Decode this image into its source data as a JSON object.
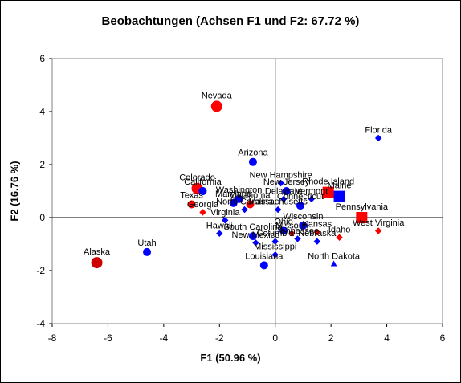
{
  "chart_data": {
    "type": "scatter",
    "title": "Beobachtungen (Achsen F1 und F2: 67.72 %)",
    "xlabel": "F1 (50.96 %)",
    "ylabel": "F2 (16.76 %)",
    "xlim": [
      -8,
      6
    ],
    "ylim": [
      -4,
      6
    ],
    "x_ticks": [
      "-8",
      "-6",
      "-4",
      "-2",
      "0",
      "2",
      "4",
      "6"
    ],
    "y_ticks": [
      "-4",
      "-2",
      "0",
      "2",
      "4",
      "6"
    ],
    "grid": false,
    "legend": "none",
    "colors": {
      "red": "#ff0000",
      "blue": "#0000ff",
      "darkred": "#cc0000"
    },
    "points": [
      {
        "label": "Nevada",
        "x": -2.1,
        "y": 4.2,
        "color": "red",
        "shape": "circle",
        "size": "large"
      },
      {
        "label": "Florida",
        "x": 3.7,
        "y": 3.0,
        "color": "blue",
        "shape": "diamond",
        "size": "small"
      },
      {
        "label": "Arizona",
        "x": -0.8,
        "y": 2.1,
        "color": "blue",
        "shape": "circle",
        "size": "medium"
      },
      {
        "label": "New Hampshire",
        "x": 0.2,
        "y": 1.3,
        "color": "blue",
        "shape": "diamond",
        "size": "small"
      },
      {
        "label": "Colorado",
        "x": -2.8,
        "y": 1.1,
        "color": "red",
        "shape": "circle",
        "size": "large"
      },
      {
        "label": "California",
        "x": -2.6,
        "y": 1.0,
        "color": "blue",
        "shape": "circle",
        "size": "medium"
      },
      {
        "label": "Rhode Island",
        "x": 1.9,
        "y": 0.95,
        "color": "red",
        "shape": "square",
        "size": "large"
      },
      {
        "label": "New Jersey",
        "x": 0.4,
        "y": 1.0,
        "color": "blue",
        "shape": "circle",
        "size": "medium"
      },
      {
        "label": "Maine",
        "x": 2.3,
        "y": 0.8,
        "color": "blue",
        "shape": "square",
        "size": "large"
      },
      {
        "label": "Washington",
        "x": -1.3,
        "y": 0.7,
        "color": "blue",
        "shape": "circle",
        "size": "medium"
      },
      {
        "label": "Delaware",
        "x": 0.3,
        "y": 0.7,
        "color": "blue",
        "shape": "diamond",
        "size": "small"
      },
      {
        "label": "Vermont",
        "x": 1.3,
        "y": 0.7,
        "color": "blue",
        "shape": "diamond",
        "size": "small"
      },
      {
        "label": "Texas",
        "x": -3.0,
        "y": 0.5,
        "color": "red",
        "shape": "circle",
        "size": "medium"
      },
      {
        "label": "Maryland",
        "x": -1.5,
        "y": 0.55,
        "color": "blue",
        "shape": "circle",
        "size": "medium"
      },
      {
        "label": "Oklahoma",
        "x": -0.9,
        "y": 0.5,
        "color": "red",
        "shape": "circle",
        "size": "medium"
      },
      {
        "label": "Connecticut",
        "x": 0.9,
        "y": 0.45,
        "color": "blue",
        "shape": "circle",
        "size": "medium"
      },
      {
        "label": "Georgia",
        "x": -2.6,
        "y": 0.2,
        "color": "red",
        "shape": "diamond",
        "size": "small"
      },
      {
        "label": "North Carolina",
        "x": -1.1,
        "y": 0.3,
        "color": "blue",
        "shape": "diamond",
        "size": "small"
      },
      {
        "label": "Massachusetts",
        "x": 0.1,
        "y": 0.3,
        "color": "blue",
        "shape": "diamond",
        "size": "small"
      },
      {
        "label": "Pennsylvania",
        "x": 3.1,
        "y": 0.0,
        "color": "red",
        "shape": "square",
        "size": "large"
      },
      {
        "label": "Virginia",
        "x": -1.8,
        "y": -0.1,
        "color": "blue",
        "shape": "diamond",
        "size": "small"
      },
      {
        "label": "Wisconsin",
        "x": 1.0,
        "y": -0.3,
        "color": "blue",
        "shape": "circle",
        "size": "medium"
      },
      {
        "label": "Ohio",
        "x": 0.3,
        "y": -0.5,
        "color": "blue",
        "shape": "circle",
        "size": "medium"
      },
      {
        "label": "South Carolina",
        "x": -0.8,
        "y": -0.7,
        "color": "blue",
        "shape": "circle",
        "size": "medium"
      },
      {
        "label": "Missouri",
        "x": 0.6,
        "y": -0.6,
        "color": "red",
        "shape": "diamond",
        "size": "small"
      },
      {
        "label": "Kansas",
        "x": 1.5,
        "y": -0.55,
        "color": "red",
        "shape": "diamond",
        "size": "small"
      },
      {
        "label": "Hawaii",
        "x": -2.0,
        "y": -0.6,
        "color": "blue",
        "shape": "diamond",
        "size": "small"
      },
      {
        "label": "Tennessee",
        "x": 0.8,
        "y": -0.8,
        "color": "blue",
        "shape": "diamond",
        "size": "small"
      },
      {
        "label": "New Mexico",
        "x": -0.7,
        "y": -0.95,
        "color": "blue",
        "shape": "diamond",
        "size": "small"
      },
      {
        "label": "Columbia",
        "x": 0.0,
        "y": -0.9,
        "color": "blue",
        "shape": "diamond",
        "size": "small"
      },
      {
        "label": "West Virginia",
        "x": 3.7,
        "y": -0.5,
        "color": "red",
        "shape": "diamond",
        "size": "small"
      },
      {
        "label": "Idaho",
        "x": 2.3,
        "y": -0.75,
        "color": "red",
        "shape": "diamond",
        "size": "small"
      },
      {
        "label": "North Dakota",
        "x": 2.1,
        "y": -1.75,
        "color": "blue",
        "shape": "triangle",
        "size": "small"
      },
      {
        "label": "Nebraska",
        "x": 1.5,
        "y": -0.9,
        "color": "blue",
        "shape": "diamond",
        "size": "small"
      },
      {
        "label": "Utah",
        "x": -4.6,
        "y": -1.3,
        "color": "blue",
        "shape": "circle",
        "size": "medium"
      },
      {
        "label": "Alaska",
        "x": -6.4,
        "y": -1.7,
        "color": "darkred",
        "shape": "circle",
        "size": "large"
      },
      {
        "label": "Mississippi",
        "x": 0.0,
        "y": -1.4,
        "color": "blue",
        "shape": "diamond",
        "size": "small"
      },
      {
        "label": "Louisiana",
        "x": -0.4,
        "y": -1.8,
        "color": "blue",
        "shape": "circle",
        "size": "medium"
      }
    ]
  }
}
